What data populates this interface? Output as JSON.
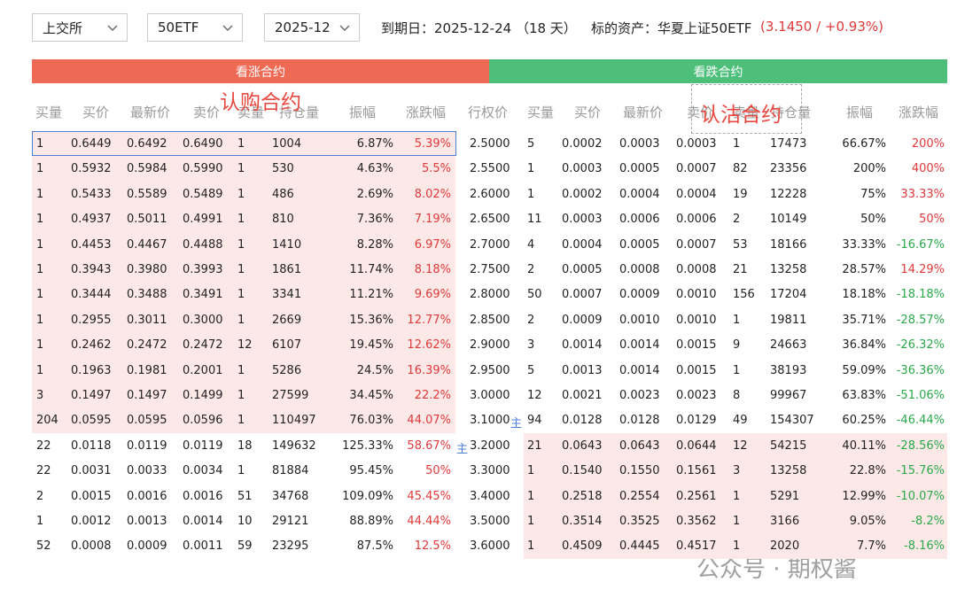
{
  "toolbar": {
    "selectors": [
      "上交所",
      "50ETF",
      "2025-12"
    ],
    "expiry": "到期日：2025-12-24 （18 天）",
    "underlying": "标的资产：华夏上证50ETF",
    "quote": "(3.1450 / +0.93%)"
  },
  "sections": {
    "call": "看涨合约",
    "put": "看跌合约"
  },
  "annotations": {
    "call": "认购合约",
    "put": "认沽合约"
  },
  "columns": {
    "call": [
      "买量",
      "买价",
      "最新价",
      "卖价",
      "卖量",
      "持仓量",
      "振幅",
      "涨跌幅"
    ],
    "strike": "行权价",
    "put": [
      "买量",
      "买价",
      "最新价",
      "卖价",
      "卖量",
      "持仓量",
      "振幅",
      "涨跌幅"
    ]
  },
  "rows": [
    {
      "call": [
        "1",
        "0.6449",
        "0.6492",
        "0.6490",
        "1",
        "1004",
        "6.87%",
        "5.39%"
      ],
      "strike": "2.5000",
      "put": [
        "5",
        "0.0002",
        "0.0003",
        "0.0003",
        "1",
        "17473",
        "66.67%",
        "200%"
      ]
    },
    {
      "call": [
        "1",
        "0.5932",
        "0.5984",
        "0.5990",
        "1",
        "530",
        "4.63%",
        "5.5%"
      ],
      "strike": "2.5500",
      "put": [
        "1",
        "0.0003",
        "0.0005",
        "0.0007",
        "82",
        "23356",
        "200%",
        "400%"
      ]
    },
    {
      "call": [
        "1",
        "0.5433",
        "0.5589",
        "0.5489",
        "1",
        "486",
        "2.69%",
        "8.02%"
      ],
      "strike": "2.6000",
      "put": [
        "1",
        "0.0002",
        "0.0004",
        "0.0004",
        "19",
        "12228",
        "75%",
        "33.33%"
      ]
    },
    {
      "call": [
        "1",
        "0.4937",
        "0.5011",
        "0.4991",
        "1",
        "810",
        "7.36%",
        "7.19%"
      ],
      "strike": "2.6500",
      "put": [
        "11",
        "0.0003",
        "0.0006",
        "0.0006",
        "2",
        "10149",
        "50%",
        "50%"
      ]
    },
    {
      "call": [
        "1",
        "0.4453",
        "0.4467",
        "0.4488",
        "1",
        "1410",
        "8.28%",
        "6.97%"
      ],
      "strike": "2.7000",
      "put": [
        "4",
        "0.0004",
        "0.0005",
        "0.0007",
        "53",
        "18166",
        "33.33%",
        "-16.67%"
      ]
    },
    {
      "call": [
        "1",
        "0.3943",
        "0.3980",
        "0.3993",
        "1",
        "1861",
        "11.74%",
        "8.18%"
      ],
      "strike": "2.7500",
      "put": [
        "2",
        "0.0005",
        "0.0008",
        "0.0008",
        "21",
        "13258",
        "28.57%",
        "14.29%"
      ]
    },
    {
      "call": [
        "1",
        "0.3444",
        "0.3488",
        "0.3491",
        "1",
        "3341",
        "11.21%",
        "9.69%"
      ],
      "strike": "2.8000",
      "put": [
        "50",
        "0.0007",
        "0.0009",
        "0.0010",
        "156",
        "17204",
        "18.18%",
        "-18.18%"
      ]
    },
    {
      "call": [
        "1",
        "0.2955",
        "0.3011",
        "0.3000",
        "1",
        "2669",
        "15.36%",
        "12.77%"
      ],
      "strike": "2.8500",
      "put": [
        "2",
        "0.0009",
        "0.0010",
        "0.0010",
        "1",
        "19811",
        "35.71%",
        "-28.57%"
      ]
    },
    {
      "call": [
        "1",
        "0.2462",
        "0.2472",
        "0.2472",
        "12",
        "6107",
        "19.45%",
        "12.62%"
      ],
      "strike": "2.9000",
      "put": [
        "3",
        "0.0014",
        "0.0014",
        "0.0015",
        "9",
        "24663",
        "36.84%",
        "-26.32%"
      ]
    },
    {
      "call": [
        "1",
        "0.1963",
        "0.1981",
        "0.2001",
        "1",
        "5286",
        "24.5%",
        "16.39%"
      ],
      "strike": "2.9500",
      "put": [
        "5",
        "0.0013",
        "0.0014",
        "0.0015",
        "1",
        "38193",
        "59.09%",
        "-36.36%"
      ]
    },
    {
      "call": [
        "3",
        "0.1497",
        "0.1497",
        "0.1499",
        "1",
        "27599",
        "34.45%",
        "22.2%"
      ],
      "strike": "3.0000",
      "put": [
        "12",
        "0.0021",
        "0.0023",
        "0.0023",
        "8",
        "99967",
        "63.83%",
        "-51.06%"
      ]
    },
    {
      "call": [
        "204",
        "0.0595",
        "0.0595",
        "0.0596",
        "1",
        "110497",
        "76.03%",
        "44.07%"
      ],
      "strike": "3.1000",
      "mark_after": "主",
      "put": [
        "94",
        "0.0128",
        "0.0128",
        "0.0129",
        "49",
        "154307",
        "60.25%",
        "-46.44%"
      ]
    },
    {
      "call": [
        "22",
        "0.0118",
        "0.0119",
        "0.0119",
        "18",
        "149632",
        "125.33%",
        "58.67%"
      ],
      "strike": "3.2000",
      "mark_before": "主",
      "put": [
        "21",
        "0.0643",
        "0.0643",
        "0.0644",
        "12",
        "54215",
        "40.11%",
        "-28.56%"
      ]
    },
    {
      "call": [
        "22",
        "0.0031",
        "0.0033",
        "0.0034",
        "1",
        "81884",
        "95.45%",
        "50%"
      ],
      "strike": "3.3000",
      "put": [
        "1",
        "0.1540",
        "0.1550",
        "0.1561",
        "3",
        "13258",
        "22.8%",
        "-15.76%"
      ]
    },
    {
      "call": [
        "2",
        "0.0015",
        "0.0016",
        "0.0016",
        "51",
        "34768",
        "109.09%",
        "45.45%"
      ],
      "strike": "3.4000",
      "put": [
        "1",
        "0.2518",
        "0.2554",
        "0.2561",
        "1",
        "5291",
        "12.99%",
        "-10.07%"
      ]
    },
    {
      "call": [
        "1",
        "0.0012",
        "0.0013",
        "0.0014",
        "10",
        "29121",
        "88.89%",
        "44.44%"
      ],
      "strike": "3.5000",
      "put": [
        "1",
        "0.3514",
        "0.3525",
        "0.3562",
        "1",
        "3166",
        "9.05%",
        "-8.2%"
      ]
    },
    {
      "call": [
        "52",
        "0.0008",
        "0.0009",
        "0.0011",
        "59",
        "23295",
        "87.5%",
        "12.5%"
      ],
      "strike": "3.6000",
      "put": [
        "1",
        "0.4509",
        "0.4445",
        "0.4517",
        "1",
        "2020",
        "7.7%",
        "-8.16%"
      ]
    }
  ],
  "watermark": "公众号 · 期权酱"
}
